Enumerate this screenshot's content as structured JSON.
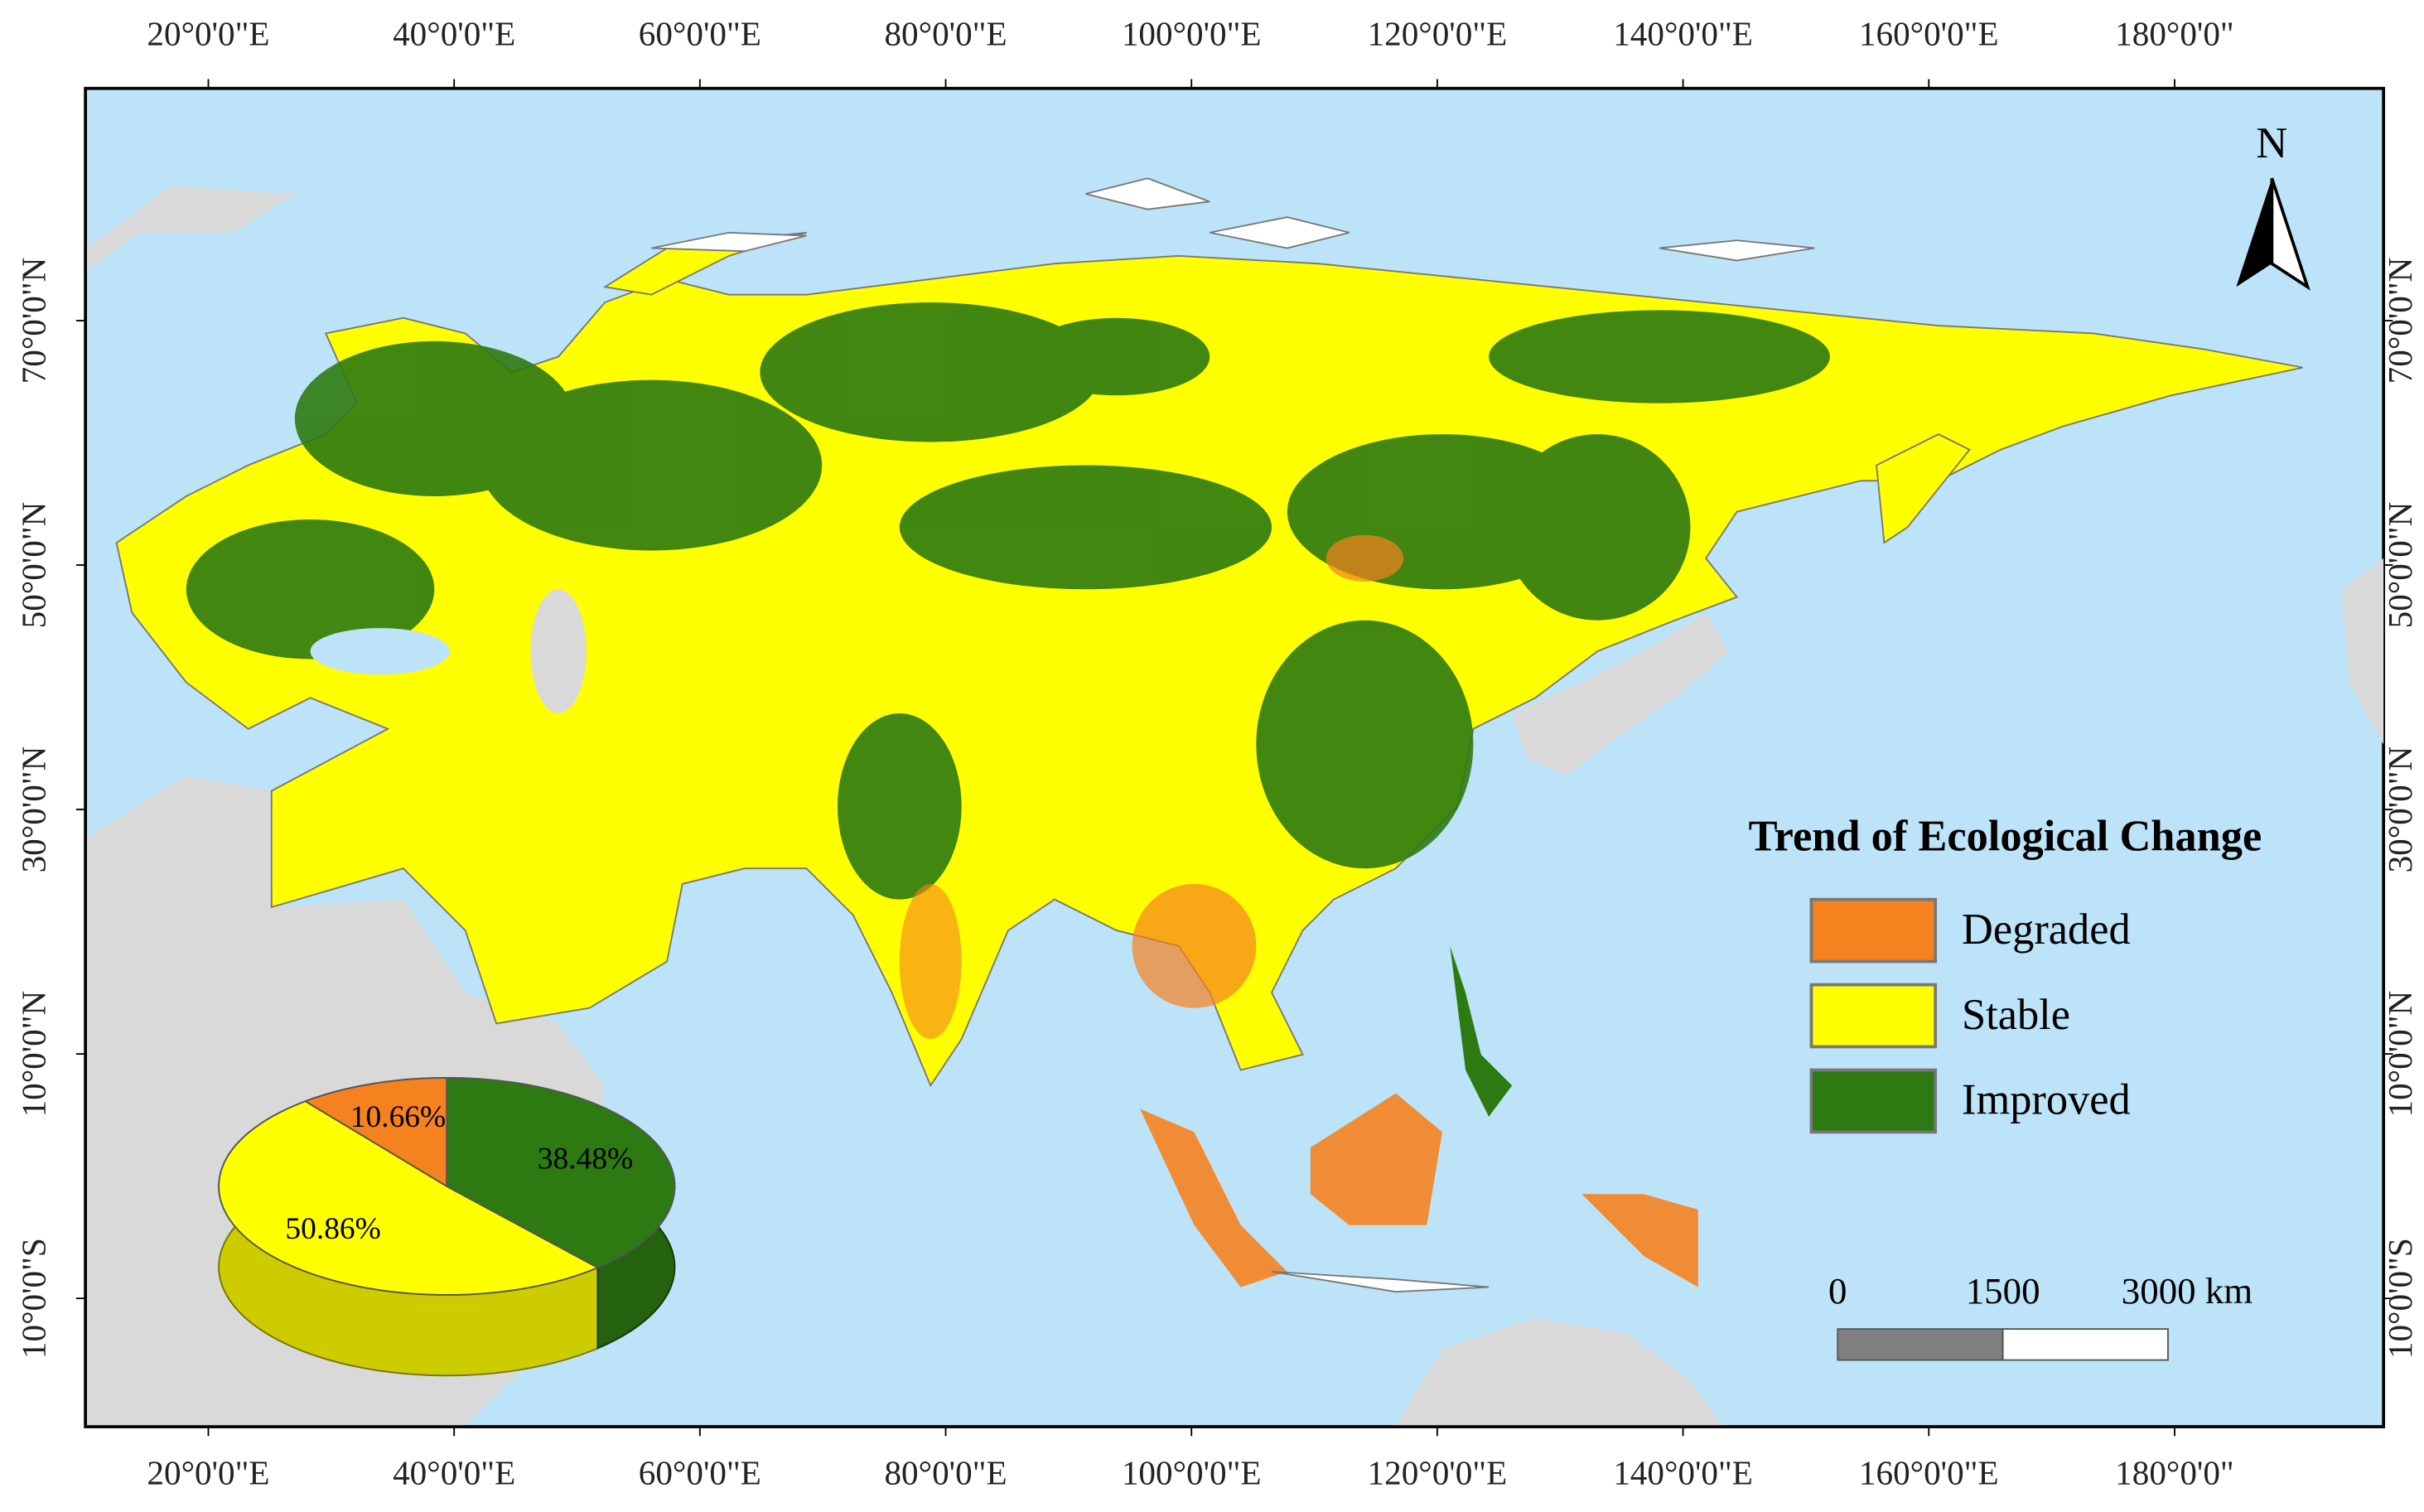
{
  "map": {
    "xlim": [
      10,
      197
    ],
    "ylim": [
      -20.5,
      89
    ],
    "xticks": [
      {
        "value": 20,
        "label": "20°0'0\"E"
      },
      {
        "value": 40,
        "label": "40°0'0\"E"
      },
      {
        "value": 60,
        "label": "60°0'0\"E"
      },
      {
        "value": 80,
        "label": "80°0'0\"E"
      },
      {
        "value": 100,
        "label": "100°0'0\"E"
      },
      {
        "value": 120,
        "label": "120°0'0\"E"
      },
      {
        "value": 140,
        "label": "140°0'0\"E"
      },
      {
        "value": 160,
        "label": "160°0'0\"E"
      },
      {
        "value": 180,
        "label": "180°0'0\""
      }
    ],
    "yticks": [
      {
        "value": 70,
        "label": "70°0'0\"N"
      },
      {
        "value": 50,
        "label": "50°0'0\"N"
      },
      {
        "value": 30,
        "label": "30°0'0\"N"
      },
      {
        "value": 10,
        "label": "10°0'0\"N"
      },
      {
        "value": -10,
        "label": "10°0'0\"S"
      }
    ],
    "north": "N",
    "scale_bar": {
      "ticks": [
        0,
        1500,
        {
          "value": 3000,
          "label": "3000 km"
        }
      ]
    }
  },
  "chart_data": {
    "type": "pie",
    "legend_title": "Trend of Ecological Change",
    "categories": [
      "Degraded",
      "Stable",
      "Improved"
    ],
    "colors": [
      "#f5821f",
      "#ffff00",
      "#2d7a12"
    ],
    "values": [
      10.66,
      50.86,
      38.48
    ],
    "value_labels": [
      "10.66%",
      "50.86%",
      "38.48%"
    ]
  }
}
